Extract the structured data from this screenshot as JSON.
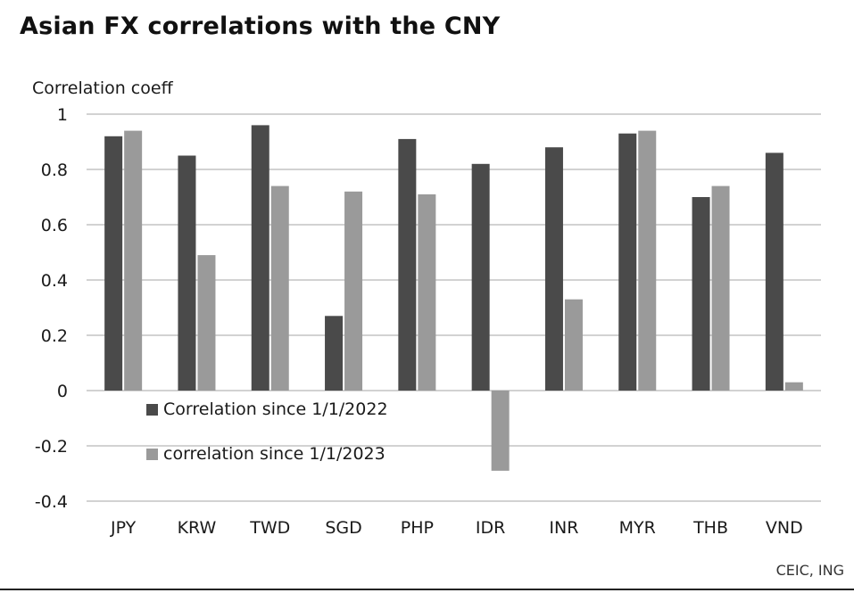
{
  "chart_data": {
    "type": "bar",
    "title": "Asian FX correlations with the CNY",
    "ylabel": "Correlation coeff",
    "xlabel": "",
    "source": "CEIC, ING",
    "categories": [
      "JPY",
      "KRW",
      "TWD",
      "SGD",
      "PHP",
      "IDR",
      "INR",
      "MYR",
      "THB",
      "VND"
    ],
    "series": [
      {
        "name": "Correlation since 1/1/2022",
        "color": "#4a4a4a",
        "values": [
          0.92,
          0.85,
          0.96,
          0.27,
          0.91,
          0.82,
          0.88,
          0.93,
          0.7,
          0.86
        ]
      },
      {
        "name": "correlation since 1/1/2023",
        "color": "#9a9a9a",
        "values": [
          0.94,
          0.49,
          0.74,
          0.72,
          0.71,
          -0.29,
          0.33,
          0.94,
          0.74,
          0.03
        ]
      }
    ],
    "ylim": [
      -0.4,
      1
    ],
    "yticks": [
      -0.4,
      -0.2,
      0,
      0.2,
      0.4,
      0.6,
      0.8,
      1
    ],
    "ytick_labels": [
      "-0.4",
      "-0.2",
      "0",
      "0.2",
      "0.4",
      "0.6",
      "0.8",
      "1"
    ],
    "grid": true,
    "legend_position": "lower-left"
  }
}
